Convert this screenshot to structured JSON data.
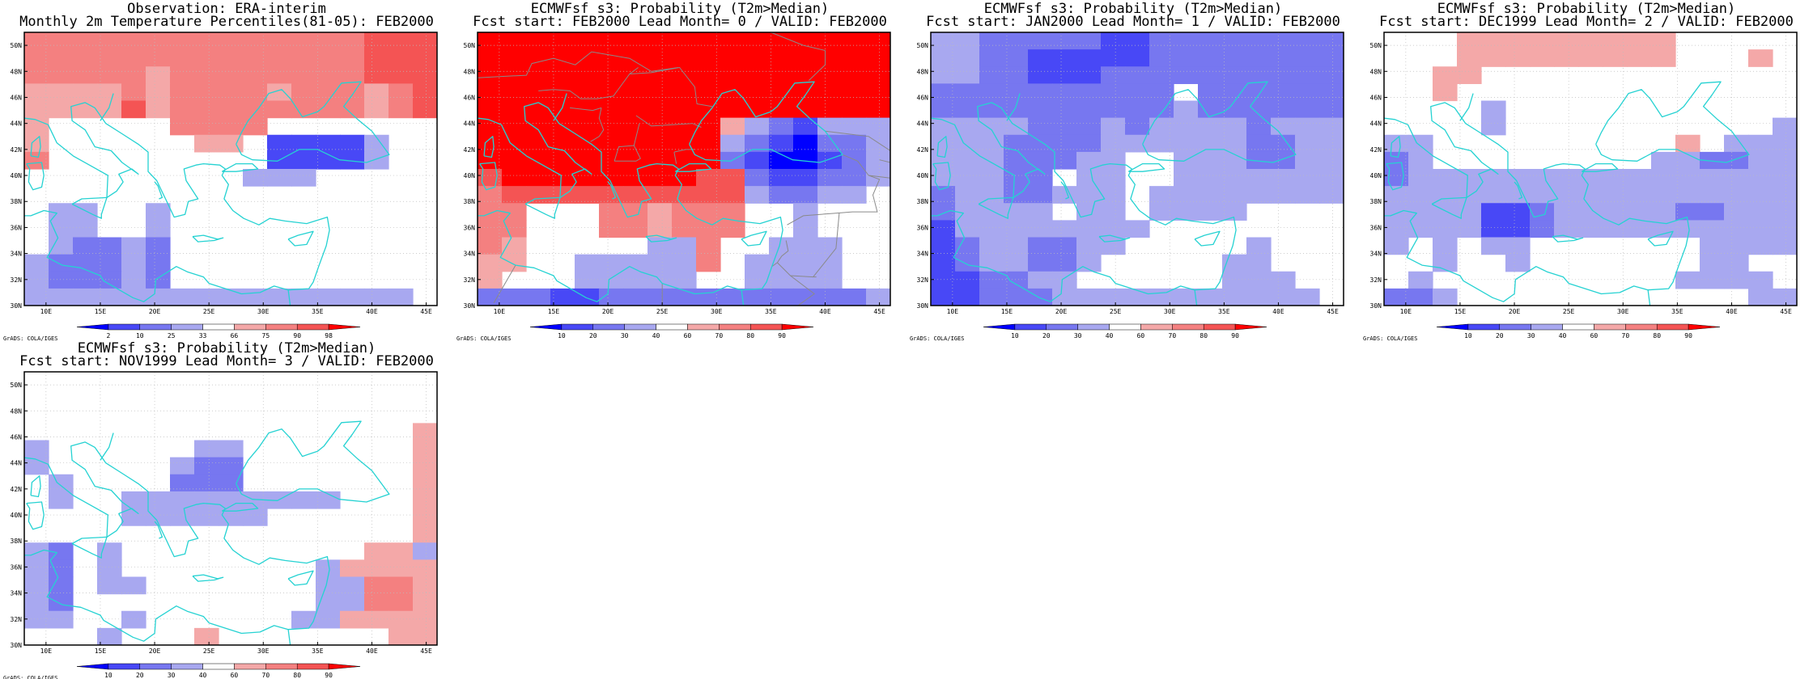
{
  "credit": "GrADS: COLA/IGES",
  "lat_labels": [
    "30N",
    "32N",
    "34N",
    "36N",
    "38N",
    "40N",
    "42N",
    "44N",
    "46N",
    "48N",
    "50N"
  ],
  "lon_labels": [
    "10E",
    "15E",
    "20E",
    "25E",
    "30E",
    "35E",
    "40E",
    "45E"
  ],
  "colors": {
    "coast": "#25d2d2",
    "border": "#8a8a8a",
    "grid": "#bcbcbc",
    "palette": {
      "b4": "#0000ff",
      "b3": "#4848f6",
      "b2": "#7777f0",
      "b1": "#a8a8f0",
      "w": "#ffffff",
      "r1": "#f4a8a8",
      "r2": "#f48080",
      "r3": "#f45454",
      "r4": "#ff0000"
    }
  },
  "colorbars": {
    "obs": {
      "labels": [
        "2",
        "10",
        "25",
        "33",
        "66",
        "75",
        "90",
        "98"
      ]
    },
    "fcst": {
      "labels": [
        "10",
        "20",
        "30",
        "40",
        "60",
        "70",
        "80",
        "90"
      ]
    },
    "order": [
      "b4",
      "b3",
      "b2",
      "b1",
      "w",
      "r1",
      "r2",
      "r3",
      "r4"
    ]
  },
  "panels": [
    {
      "id": "obs",
      "title1": "Observation: ERA-interim",
      "title2": "Monthly 2m Temperature Percentiles(81-05): FEB2000",
      "colorbar": "obs",
      "show_borders": false,
      "grid": [
        "r2 r2 r2 r2 r2 r2 r2 r2 r2 r2 r2 r2 r2 r2 r3 r3 r3",
        "r2 r2 r2 r2 r2 r2 r2 r2 r2 r2 r2 r2 r2 r2 r3 r3 r3",
        "r2 r2 r2 r2 r2 r1 r2 r2 r2 r2 r2 r2 r2 r2 r3 r3 r3",
        "r1 r1 r1 r1 r2 r1 r2 r2 r2 r2 r1 r2 r2 r2 r1 r2 r3",
        "r1 r1 r1 r1 r3 r1 r2 r2 r2 r2 r2 r2 r2 r2 r1 r2 r3",
        "r1 w w w w w r2 r2 r2 r2 w w w w w w w",
        "r1 w w w w w w r1 r1 w b3 b3 b3 b3 b1 w w",
        "r2 w w w w w w w w w b3 b3 b3 b3 b1 w w",
        "w w w w w w w w w b1 b1 b1 w w w w w",
        "w w w w w w w w w w w w w w w w w",
        "w b1 b1 w w b1 w w w w w w w w w w w",
        "w b1 b1 w w b1 w w w w w w w w w w w",
        "w b1 b2 b2 b1 b2 w w w w w w w w w w w",
        "b1 b2 b2 b2 b1 b2 w w w w w w w w w w w",
        "b1 b2 b2 b2 b1 b2 w w w w w w w w w w w",
        "b1 b1 b1 b1 b1 b1 b1 b1 b1 b1 b1 b1 b1 b1 b1 b1 w"
      ]
    },
    {
      "id": "fc0",
      "title1": "ECMWFsf s3: Probability (T2m>Median)",
      "title2": "Fcst start: FEB2000  Lead Month= 0 / VALID: FEB2000",
      "colorbar": "fcst",
      "show_borders": true,
      "grid": [
        "r4 r4 r4 r4 r4 r4 r4 r4 r4 r4 r4 r4 r4 r4 r4 r4 r4",
        "r4 r4 r4 r4 r4 r4 r4 r4 r4 r4 r4 r4 r4 r4 r4 r4 r4",
        "r4 r4 r4 r4 r4 r4 r4 r4 r4 r4 r4 r4 r4 r4 r4 r4 r4",
        "r4 r4 r4 r4 r4 r4 r4 r4 r4 r4 r4 r4 r4 r4 r4 r4 r4",
        "r4 r4 r4 r4 r4 r4 r4 r4 r4 r4 r4 r4 r4 r4 r4 r4 r4",
        "r4 r4 r4 r4 r4 r4 r4 r4 r4 r4 r1 b1 b2 b3 b1 b1 b1",
        "r4 r4 r4 r4 r4 r4 r4 r4 r4 r4 b1 b2 b3 b4 b2 b2 b1",
        "r4 r4 r4 r4 r4 r4 r4 r4 r4 r4 b2 b3 b4 b4 b3 b2 b1",
        "r3 r4 r4 r4 r4 r4 r4 r4 r4 r3 r3 b2 b3 b3 b2 b2 b1",
        "r2 r3 r3 r3 r3 r3 r3 r3 r3 r3 r3 b1 b2 b2 b1 b1 w",
        "r2 r2 w w w r2 r2 r1 r2 r2 r2 w w b1 w w w",
        "r2 r2 w w w r2 r2 r1 r2 r2 r2 w w b1 w w w",
        "r2 r1 w w w w w b1 b1 r2 w w b1 b1 b1 w w",
        "r1 r1 w w b1 b1 b1 b1 b1 r2 w b1 b1 b1 b1 w w",
        "r1 w w w b1 b1 b1 b1 b1 w w b1 b1 b1 b1 w w",
        "b2 b2 b2 b3 b3 b2 b2 b2 b2 b2 b2 b2 b2 b2 b2 b2 b1"
      ]
    },
    {
      "id": "fc1",
      "title1": "ECMWFsf s3: Probability (T2m>Median)",
      "title2": "Fcst start: JAN2000  Lead Month= 1 / VALID: FEB2000",
      "colorbar": "fcst",
      "show_borders": false,
      "grid": [
        "b1 b1 b2 b2 b2 b2 b2 b3 b3 b2 b2 b2 b2 b2 b2 b2 b2",
        "b1 b1 b2 b2 b3 b3 b3 b3 b3 b2 b2 b2 b2 b2 b2 b2 b2",
        "b1 b1 b2 b2 b3 b3 b3 b2 b2 b2 b2 b2 b2 b2 b2 b2 b2",
        "b2 b2 b2 b2 b2 b2 b2 b2 b2 b2 w b2 b2 b2 b2 b2 b2",
        "b2 b2 b2 b2 b2 b2 b2 b2 b2 b2 b1 b2 b2 b2 b2 b2 b2",
        "b1 b1 b1 b1 b2 b2 b2 b1 b2 b1 b1 b1 b1 b2 b1 b1 b1",
        "b1 b1 b1 b2 b2 b2 b2 b1 b1 b1 b1 b1 b1 b2 b2 b1 b1",
        "b1 b1 b1 b2 b2 b2 b1 b1 w w b1 b1 b1 b2 b2 b1 b1",
        "b1 b1 b1 b2 b2 w b1 b1 w w b1 b1 b1 b1 b1 b1 b1",
        "b2 b1 b1 b2 b2 b1 b1 b1 w b1 b1 b1 b1 b1 b1 b1 b1",
        "b2 b1 b1 b1 b1 w b1 b1 w b1 b1 b1 b1 w w w w",
        "b3 b1 b1 b1 b1 b1 b1 b1 b1 w w w w w w w w",
        "b3 b2 b1 b1 b2 b2 b1 b1 w w w w w b1 w w w",
        "b3 b2 b1 b1 b2 b2 b1 w w w w w b1 b1 w w w",
        "b3 b3 b2 b2 b1 b1 w w w w w w b1 b1 b1 w w",
        "b3 b3 b2 b2 b2 b1 b1 b1 b1 b1 b1 b1 b1 b1 b1 b1 w"
      ]
    },
    {
      "id": "fc2",
      "title1": "ECMWFsf s3: Probability (T2m>Median)",
      "title2": "Fcst start: DEC1999  Lead Month= 2 / VALID: FEB2000",
      "colorbar": "fcst",
      "show_borders": false,
      "grid": [
        "w w w r1 r1 r1 r1 r1 r1 r1 r1 r1 w w w w w",
        "w w w r1 r1 r1 r1 r1 r1 r1 r1 r1 w w w r1 w",
        "w w r1 r1 w w w w w w w w w w w w w",
        "w w r1 w w w w w w w w w w w w w w",
        "w w w w b1 w w w w w w w w w w w w",
        "w w w w b1 w w w w w w w w w w w b1",
        "b1 b1 w w w w w w w w w w r1 w b1 b1 b1",
        "b2 b1 w w w w w w w w w b1 b1 b2 b2 b1 b1",
        "b2 b1 b1 b1 b1 b1 b1 b1 b1 b1 b1 b1 b1 b1 b1 b1 b1",
        "b1 b1 b1 b1 b1 b1 b1 b1 b1 b1 b1 b1 b1 b1 b1 b1 b1",
        "b1 b1 b1 b1 b3 b3 b2 b1 b1 b1 b1 b1 b2 b2 b1 b1 b1",
        "b1 b1 b1 b1 b3 b3 b2 b1 b1 b1 b1 b1 b1 b1 b1 b1 b1",
        "b1 w b1 w b1 b1 w w w w w w w b1 b1 b1 b1",
        "w w b1 w w b1 w w w w w w w b1 b1 w w",
        "w b1 w w w w w w w w w w b1 b1 b1 b1 w",
        "b2 b2 b1 w w w w w w w w w w w w b1 b1"
      ]
    },
    {
      "id": "fc3",
      "title1": "ECMWFsf s3: Probability (T2m>Median)",
      "title2": "Fcst start: NOV1999  Lead Month= 3 / VALID: FEB2000",
      "colorbar": "fcst",
      "show_borders": false,
      "grid": [
        "w w w w w w w w w w w w w w w w w",
        "w w w w w w w w w w w w w w w w w",
        "w w w w w w w w w w w w w w w w w",
        "w w w w w w w w w w w w w w w w r1",
        "b1 w w w w w w b1 b1 w w w w w w w r1",
        "b1 w w w w w b1 b2 b2 w w w w w w w r1",
        "w b1 w w w w b2 b2 b2 w w w w w w w r1",
        "w b1 w w b1 b1 b1 b1 b1 b1 b1 b1 b1 w w w r1",
        "w w w w b1 b1 b1 b1 b1 b1 w w w w w w r1",
        "w w w w w w w w w w w w w w w w r1",
        "b1 b2 w b1 w w w w w w w w w w r1 r1 b1",
        "b1 b2 w b1 w w w w w w w w b1 r1 r1 r1 r1",
        "b1 b2 w b1 b1 w w w w w w w b1 b1 r2 r2 r1",
        "b1 b2 w w w w w w w w w w b1 b1 r2 r2 r1",
        "b1 b1 w w b1 w w w w w w b1 b1 r1 r1 r1 r1",
        "w w w b1 w w w r1 w w w w w w w r1 r1"
      ]
    }
  ]
}
